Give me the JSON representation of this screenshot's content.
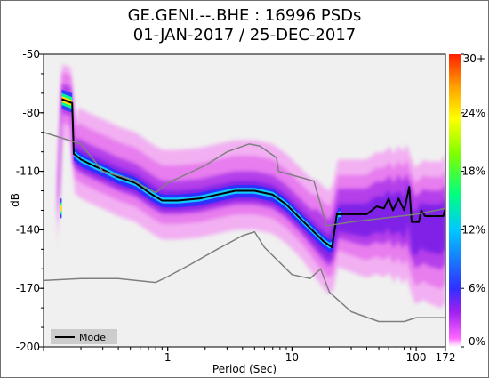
{
  "title": {
    "line1": "GE.GENI.--.BHE : 16996 PSDs",
    "line2": "01-JAN-2017 / 25-DEC-2017"
  },
  "chart_data": {
    "type": "heatmap",
    "xlabel": "Period (Sec)",
    "ylabel": "dB",
    "x_scale": "log",
    "xlim": [
      0.1,
      172
    ],
    "ylim": [
      -200,
      -50
    ],
    "x_ticks": [
      {
        "value": 1,
        "label": "1"
      },
      {
        "value": 10,
        "label": "10"
      },
      {
        "value": 100,
        "label": "100"
      },
      {
        "value": 172,
        "label": "172"
      }
    ],
    "y_ticks": [
      {
        "value": -50,
        "label": "-50"
      },
      {
        "value": -80,
        "label": "-80"
      },
      {
        "value": -110,
        "label": "-110"
      },
      {
        "value": -140,
        "label": "-140"
      },
      {
        "value": -170,
        "label": "-170"
      },
      {
        "value": -200,
        "label": "-200"
      }
    ],
    "grid": false,
    "colorbar": {
      "labels": [
        "0%",
        "6%",
        "12%",
        "18%",
        "24%",
        "30+"
      ],
      "colors": [
        "#ffffff",
        "#ff66ff",
        "#a020f0",
        "#3030ff",
        "#00c8ff",
        "#00ff80",
        "#80ff00",
        "#ffff00",
        "#ffa000",
        "#ff2000"
      ]
    },
    "legend": {
      "position": "bottom-left",
      "entries": [
        "Mode"
      ]
    },
    "series": [
      {
        "name": "Mode",
        "color": "#000000",
        "points": [
          [
            0.14,
            -73
          ],
          [
            0.17,
            -75
          ],
          [
            0.175,
            -101
          ],
          [
            0.2,
            -104
          ],
          [
            0.25,
            -107
          ],
          [
            0.32,
            -110
          ],
          [
            0.4,
            -113
          ],
          [
            0.55,
            -116
          ],
          [
            0.75,
            -122
          ],
          [
            0.9,
            -125
          ],
          [
            1.2,
            -125
          ],
          [
            1.8,
            -124
          ],
          [
            2.5,
            -122
          ],
          [
            3.5,
            -120
          ],
          [
            5,
            -120
          ],
          [
            7,
            -122
          ],
          [
            9,
            -127
          ],
          [
            12,
            -135
          ],
          [
            15,
            -141
          ],
          [
            18,
            -146
          ],
          [
            21,
            -149
          ],
          [
            23,
            -132
          ],
          [
            30,
            -132
          ],
          [
            40,
            -132
          ],
          [
            48,
            -128
          ],
          [
            55,
            -129
          ],
          [
            60,
            -124
          ],
          [
            65,
            -130
          ],
          [
            72,
            -124
          ],
          [
            80,
            -130
          ],
          [
            88,
            -118
          ],
          [
            92,
            -136
          ],
          [
            105,
            -136
          ],
          [
            110,
            -130
          ],
          [
            118,
            -133
          ],
          [
            150,
            -133
          ],
          [
            165,
            -133
          ],
          [
            172,
            -129
          ]
        ]
      },
      {
        "name": "",
        "color": "#7f7f7f",
        "points": [
          [
            0.1,
            -90
          ],
          [
            0.2,
            -96
          ],
          [
            0.3,
            -110
          ],
          [
            0.5,
            -114
          ],
          [
            0.8,
            -121
          ],
          [
            1,
            -116
          ],
          [
            2,
            -107
          ],
          [
            3,
            -100
          ],
          [
            4.5,
            -96
          ],
          [
            5.5,
            -97
          ],
          [
            7.5,
            -103
          ],
          [
            7.8,
            -110
          ],
          [
            15,
            -115
          ],
          [
            19,
            -138
          ],
          [
            30,
            -136
          ],
          [
            100,
            -132
          ],
          [
            172,
            -129
          ]
        ]
      },
      {
        "name": "",
        "color": "#7f7f7f",
        "points": [
          [
            0.1,
            -166
          ],
          [
            0.2,
            -165
          ],
          [
            0.4,
            -165
          ],
          [
            0.8,
            -167
          ],
          [
            1,
            -164
          ],
          [
            1.5,
            -158
          ],
          [
            2.5,
            -150
          ],
          [
            4,
            -143
          ],
          [
            5,
            -141
          ],
          [
            6,
            -149
          ],
          [
            10,
            -163
          ],
          [
            14,
            -165
          ],
          [
            17,
            -160
          ],
          [
            20,
            -172
          ],
          [
            30,
            -182
          ],
          [
            50,
            -187
          ],
          [
            80,
            -187
          ],
          [
            100,
            -185
          ],
          [
            172,
            -185
          ]
        ]
      }
    ]
  }
}
